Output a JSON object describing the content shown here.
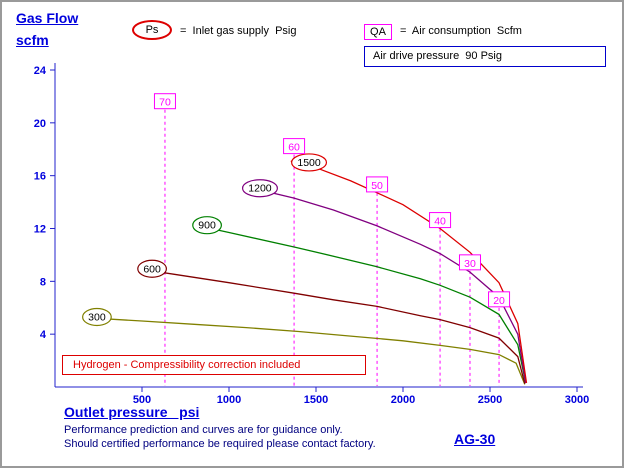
{
  "header": {
    "title": "Gas Flow",
    "subtitle": "scfm"
  },
  "legend": {
    "ps_symbol": "Ps",
    "ps_text": "=  Inlet gas supply  Psig",
    "qa_symbol": "QA",
    "qa_text": "=  Air consumption  Scfm",
    "air_drive_text": "Air drive pressure  90 Psig"
  },
  "annotation": {
    "hydrogen_note": "Hydrogen - Compressibility correction included"
  },
  "footer": {
    "xaxis_label": "Outlet pressure   psi",
    "note1": "Performance prediction and curves are for guidance only.",
    "note2": "Should certified performance be required please contact factory.",
    "model": "AG-30"
  },
  "chart_data": {
    "type": "line",
    "title": "Gas booster flow curves, air drive pressure 90 Psig, hydrogen",
    "xlabel": "Outlet pressure  psi",
    "ylabel": "Gas Flow  scfm",
    "xlim": [
      0,
      3000
    ],
    "ylim": [
      0,
      24
    ],
    "x_ticks": [
      500,
      1000,
      1500,
      2000,
      2500,
      3000
    ],
    "y_ticks": [
      4,
      8,
      12,
      16,
      20,
      24
    ],
    "grid": false,
    "axis_color": "#2222cc",
    "tick_color": "#0000dd",
    "qa_color": "#ff00ff",
    "series": [
      {
        "name": "300",
        "color": "#808000",
        "label_pos": [
          241,
          5.3
        ],
        "points": [
          [
            240,
            5.2
          ],
          [
            500,
            5.0
          ],
          [
            800,
            4.75
          ],
          [
            1100,
            4.5
          ],
          [
            1400,
            4.2
          ],
          [
            1700,
            3.85
          ],
          [
            2000,
            3.5
          ],
          [
            2213,
            3.15
          ],
          [
            2385,
            2.85
          ],
          [
            2552,
            2.45
          ],
          [
            2650,
            1.8
          ],
          [
            2700,
            0.2
          ]
        ]
      },
      {
        "name": "600",
        "color": "#800000",
        "label_pos": [
          558,
          8.95
        ],
        "points": [
          [
            500,
            8.9
          ],
          [
            700,
            8.5
          ],
          [
            1000,
            7.9
          ],
          [
            1374,
            7.1
          ],
          [
            1600,
            6.6
          ],
          [
            1851,
            6.1
          ],
          [
            2100,
            5.4
          ],
          [
            2213,
            5.1
          ],
          [
            2385,
            4.5
          ],
          [
            2552,
            3.7
          ],
          [
            2660,
            2.3
          ],
          [
            2700,
            0.25
          ]
        ]
      },
      {
        "name": "900",
        "color": "#008000",
        "label_pos": [
          874,
          12.25
        ],
        "points": [
          [
            790,
            12.3
          ],
          [
            1000,
            11.7
          ],
          [
            1374,
            10.6
          ],
          [
            1600,
            9.9
          ],
          [
            1851,
            9.1
          ],
          [
            2100,
            8.2
          ],
          [
            2213,
            7.7
          ],
          [
            2385,
            6.8
          ],
          [
            2552,
            5.5
          ],
          [
            2660,
            3.2
          ],
          [
            2705,
            0.3
          ]
        ]
      },
      {
        "name": "1200",
        "color": "#800080",
        "label_pos": [
          1178,
          15.05
        ],
        "points": [
          [
            1120,
            15.1
          ],
          [
            1374,
            14.3
          ],
          [
            1600,
            13.4
          ],
          [
            1851,
            12.2
          ],
          [
            2100,
            10.8
          ],
          [
            2213,
            10.1
          ],
          [
            2385,
            8.7
          ],
          [
            2552,
            6.8
          ],
          [
            2660,
            4.0
          ],
          [
            2705,
            0.3
          ]
        ]
      },
      {
        "name": "1500",
        "color": "#dd0000",
        "label_pos": [
          1460,
          17.0
        ],
        "points": [
          [
            1355,
            17.1
          ],
          [
            1500,
            16.6
          ],
          [
            1700,
            15.6
          ],
          [
            1851,
            14.7
          ],
          [
            2000,
            13.8
          ],
          [
            2213,
            12.0
          ],
          [
            2385,
            10.2
          ],
          [
            2552,
            7.9
          ],
          [
            2660,
            4.8
          ],
          [
            2710,
            0.3
          ]
        ]
      }
    ],
    "qa_lines": [
      {
        "label": "70",
        "x": 632,
        "label_y": 21.6
      },
      {
        "label": "60",
        "x": 1374,
        "label_y": 18.2
      },
      {
        "label": "50",
        "x": 1851,
        "label_y": 15.3
      },
      {
        "label": "40",
        "x": 2213,
        "label_y": 12.6
      },
      {
        "label": "30",
        "x": 2385,
        "label_y": 9.4
      },
      {
        "label": "20",
        "x": 2552,
        "label_y": 6.6
      }
    ]
  }
}
